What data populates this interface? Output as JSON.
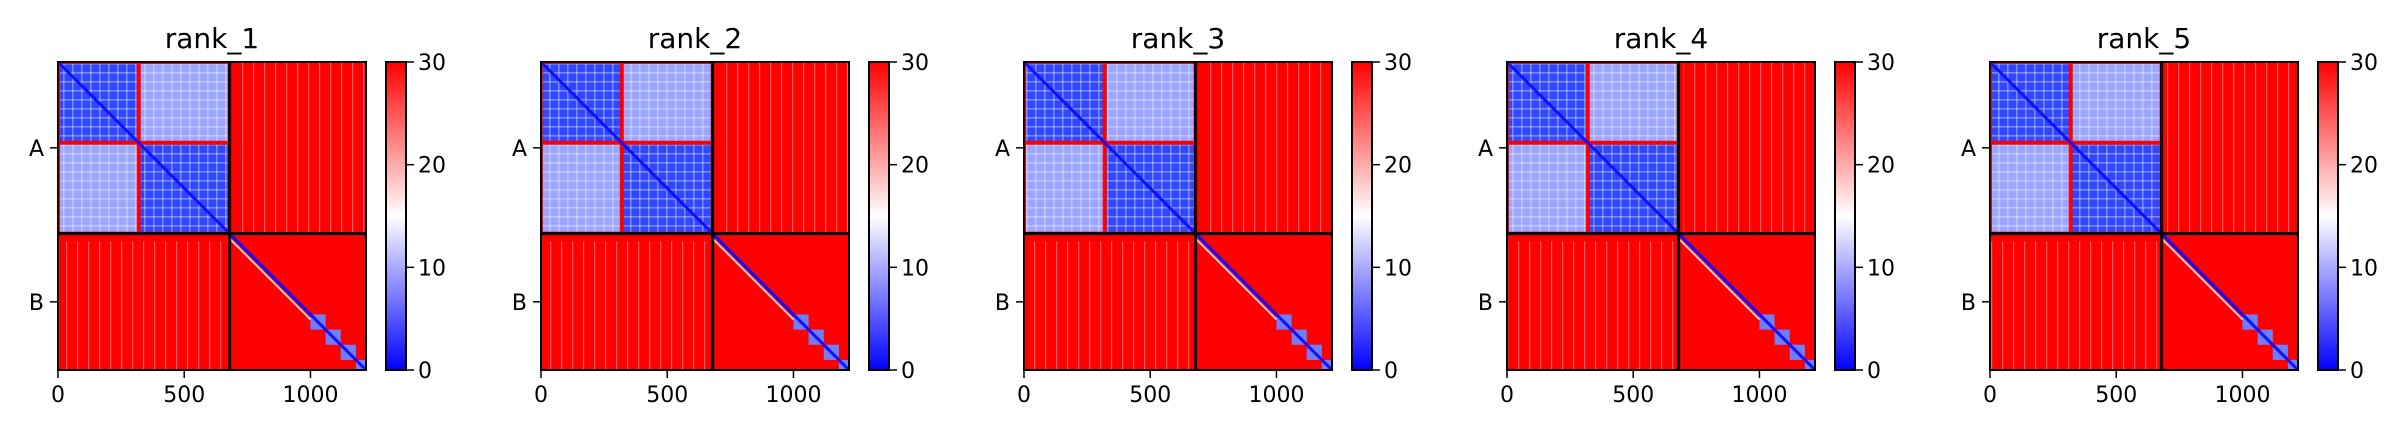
{
  "chart_data": [
    {
      "type": "heatmap",
      "title": "rank_1",
      "x_ticks": [
        0,
        500,
        1000
      ],
      "xlim": [
        0,
        1220
      ],
      "ylim": [
        0,
        1220
      ],
      "chain_boundary": 680,
      "y_chain_labels": [
        "A",
        "B"
      ],
      "colorbar": {
        "range": [
          0,
          30
        ],
        "ticks": [
          0,
          10,
          20,
          30
        ],
        "colormap": [
          "#0000ff",
          "#ffffff",
          "#ff0000"
        ]
      },
      "blocks": [
        [
          0,
          320
        ],
        [
          320,
          680
        ],
        [
          680,
          1000
        ],
        [
          1000,
          1060
        ],
        [
          1060,
          1120
        ],
        [
          1120,
          1180
        ],
        [
          1180,
          1220
        ]
      ]
    },
    {
      "type": "heatmap",
      "title": "rank_2",
      "x_ticks": [
        0,
        500,
        1000
      ],
      "xlim": [
        0,
        1220
      ],
      "ylim": [
        0,
        1220
      ],
      "chain_boundary": 680,
      "y_chain_labels": [
        "A",
        "B"
      ],
      "colorbar": {
        "range": [
          0,
          30
        ],
        "ticks": [
          0,
          10,
          20,
          30
        ],
        "colormap": [
          "#0000ff",
          "#ffffff",
          "#ff0000"
        ]
      },
      "blocks": [
        [
          0,
          320
        ],
        [
          320,
          680
        ],
        [
          680,
          1000
        ],
        [
          1000,
          1060
        ],
        [
          1060,
          1120
        ],
        [
          1120,
          1180
        ],
        [
          1180,
          1220
        ]
      ]
    },
    {
      "type": "heatmap",
      "title": "rank_3",
      "x_ticks": [
        0,
        500,
        1000
      ],
      "xlim": [
        0,
        1220
      ],
      "ylim": [
        0,
        1220
      ],
      "chain_boundary": 680,
      "y_chain_labels": [
        "A",
        "B"
      ],
      "colorbar": {
        "range": [
          0,
          30
        ],
        "ticks": [
          0,
          10,
          20,
          30
        ],
        "colormap": [
          "#0000ff",
          "#ffffff",
          "#ff0000"
        ]
      },
      "blocks": [
        [
          0,
          320
        ],
        [
          320,
          680
        ],
        [
          680,
          1000
        ],
        [
          1000,
          1060
        ],
        [
          1060,
          1120
        ],
        [
          1120,
          1180
        ],
        [
          1180,
          1220
        ]
      ]
    },
    {
      "type": "heatmap",
      "title": "rank_4",
      "x_ticks": [
        0,
        500,
        1000
      ],
      "xlim": [
        0,
        1220
      ],
      "ylim": [
        0,
        1220
      ],
      "chain_boundary": 680,
      "y_chain_labels": [
        "A",
        "B"
      ],
      "colorbar": {
        "range": [
          0,
          30
        ],
        "ticks": [
          0,
          10,
          20,
          30
        ],
        "colormap": [
          "#0000ff",
          "#ffffff",
          "#ff0000"
        ]
      },
      "blocks": [
        [
          0,
          320
        ],
        [
          320,
          680
        ],
        [
          680,
          1000
        ],
        [
          1000,
          1060
        ],
        [
          1060,
          1120
        ],
        [
          1120,
          1180
        ],
        [
          1180,
          1220
        ]
      ]
    },
    {
      "type": "heatmap",
      "title": "rank_5",
      "x_ticks": [
        0,
        500,
        1000
      ],
      "xlim": [
        0,
        1220
      ],
      "ylim": [
        0,
        1220
      ],
      "chain_boundary": 680,
      "y_chain_labels": [
        "A",
        "B"
      ],
      "colorbar": {
        "range": [
          0,
          30
        ],
        "ticks": [
          0,
          10,
          20,
          30
        ],
        "colormap": [
          "#0000ff",
          "#ffffff",
          "#ff0000"
        ]
      },
      "blocks": [
        [
          0,
          320
        ],
        [
          320,
          680
        ],
        [
          680,
          1000
        ],
        [
          1000,
          1060
        ],
        [
          1060,
          1120
        ],
        [
          1120,
          1180
        ],
        [
          1180,
          1220
        ]
      ]
    }
  ]
}
